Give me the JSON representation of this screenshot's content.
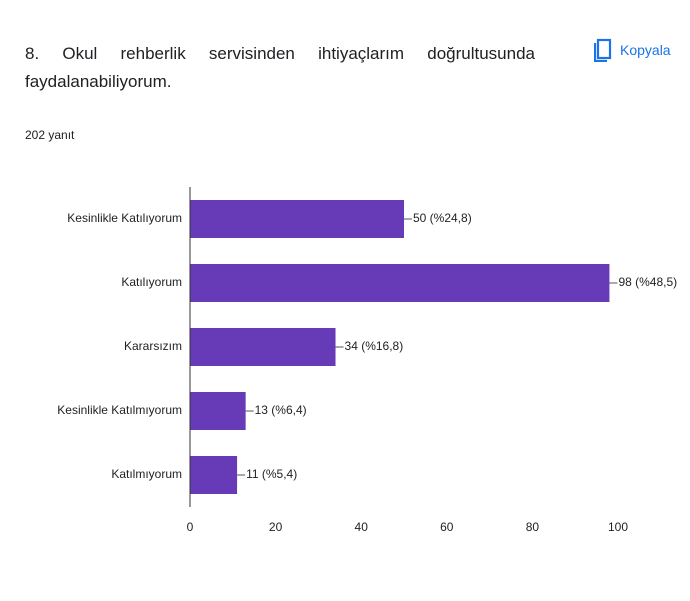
{
  "header": {
    "title": "8. Okul rehberlik servisinden ihtiyaçlarım doğrultusunda faydalanabiliyorum.",
    "responses": "202 yanıt",
    "copy_button": "Kopyala"
  },
  "chart_data": {
    "type": "bar",
    "orientation": "horizontal",
    "categories": [
      "Kesinlikle Katılıyorum",
      "Katılıyorum",
      "Kararsızım",
      "Kesinlikle Katılmıyorum",
      "Katılmıyorum"
    ],
    "values": [
      50,
      98,
      34,
      13,
      11
    ],
    "value_labels": [
      "50 (%24,8)",
      "98 (%48,5)",
      "34 (%16,8)",
      "13 (%6,4)",
      "11 (%5,4)"
    ],
    "color": "#673ab7",
    "xlim": [
      0,
      100
    ],
    "xticks": [
      0,
      20,
      40,
      60,
      80,
      100
    ],
    "grid": false
  }
}
